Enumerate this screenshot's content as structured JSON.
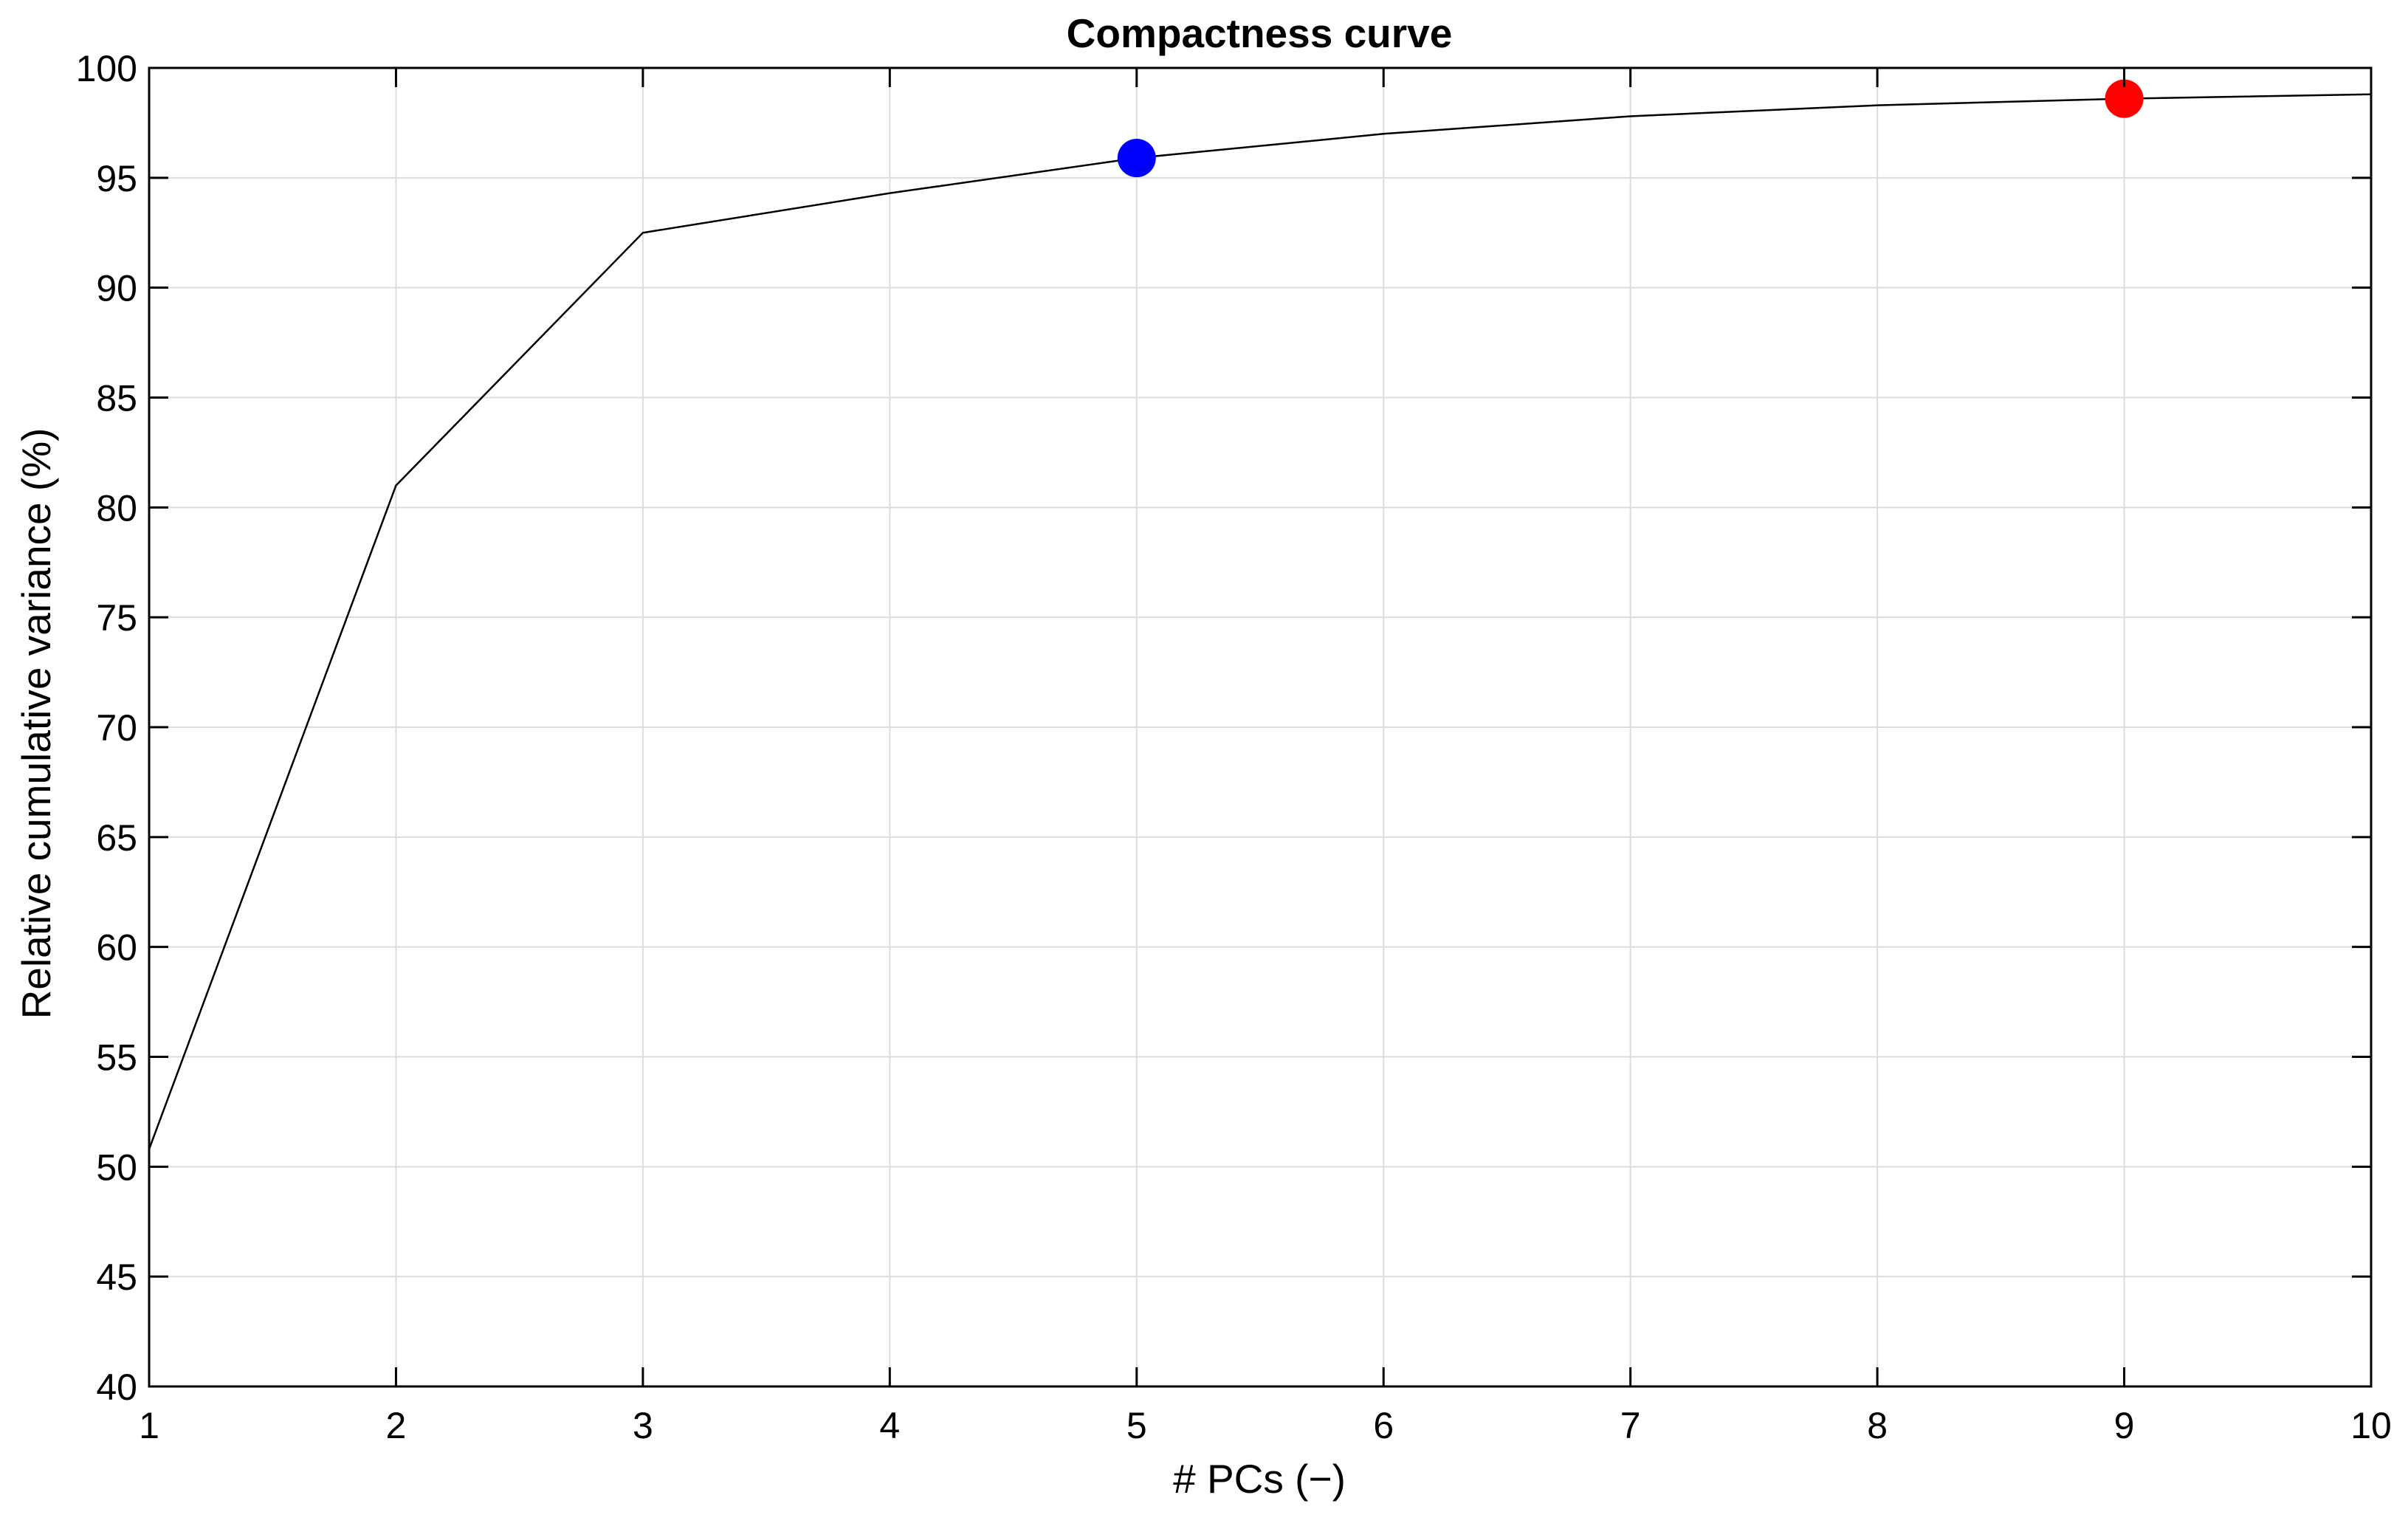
{
  "chart_data": {
    "type": "line",
    "title": "Compactness curve",
    "xlabel": "# PCs (−)",
    "ylabel": "Relative cumulative variance (%)",
    "xlim": [
      1,
      10
    ],
    "ylim": [
      40,
      100
    ],
    "xticks": [
      1,
      2,
      3,
      4,
      5,
      6,
      7,
      8,
      9,
      10
    ],
    "yticks": [
      40,
      45,
      50,
      55,
      60,
      65,
      70,
      75,
      80,
      85,
      90,
      95,
      100
    ],
    "grid": true,
    "series": [
      {
        "x": [
          1,
          2,
          3,
          4,
          5,
          6,
          7,
          8,
          9,
          10
        ],
        "y": [
          50.8,
          81.0,
          92.5,
          94.3,
          95.9,
          97.0,
          97.8,
          98.3,
          98.6,
          98.8
        ],
        "color": "#000000"
      }
    ],
    "markers": [
      {
        "x": 5,
        "y": 95.9,
        "color": "#0000ff"
      },
      {
        "x": 9,
        "y": 98.6,
        "color": "#ff0000"
      }
    ],
    "colors": {
      "grid": "#dcdcdc",
      "axes": "#000000",
      "background": "#ffffff"
    }
  }
}
